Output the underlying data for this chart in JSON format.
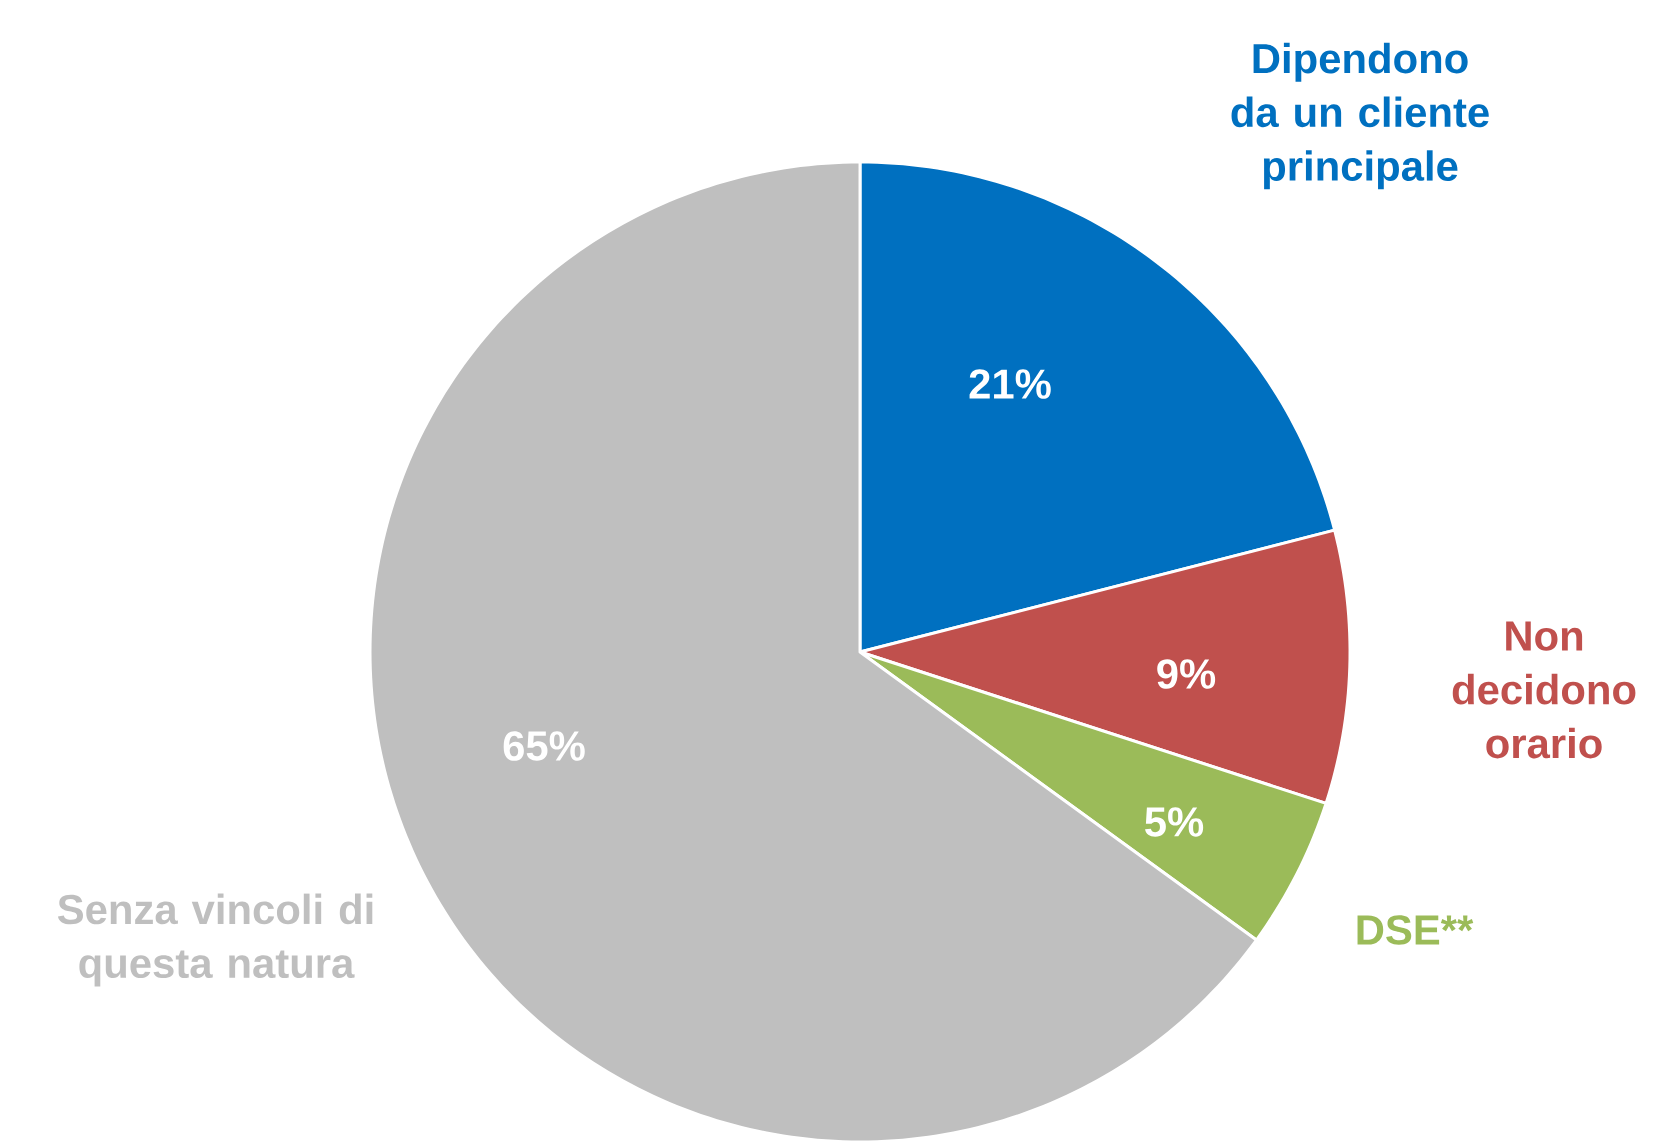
{
  "chart_data": {
    "type": "pie",
    "categories": [
      "Dipendono da un cliente principale",
      "Non decidono orario",
      "DSE**",
      "Senza vincoli di questa natura"
    ],
    "values": [
      21,
      9,
      5,
      65
    ],
    "value_labels": [
      "21%",
      "9%",
      "5%",
      "65%"
    ],
    "colors": [
      "#0070c0",
      "#c0504d",
      "#9bbb59",
      "#bfbfbf"
    ]
  }
}
